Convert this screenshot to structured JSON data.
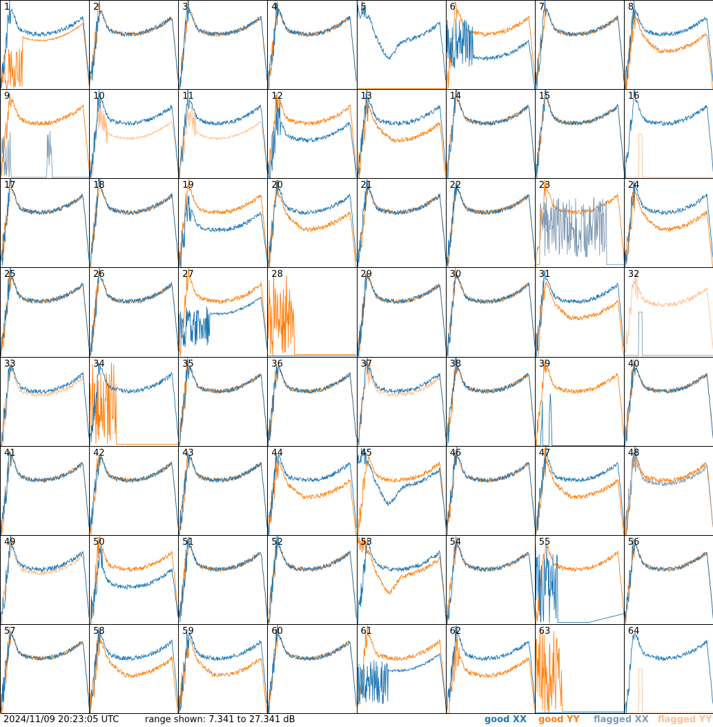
{
  "chart_data": {
    "type": "line",
    "panels": [
      "1",
      "2",
      "3",
      "4",
      "5",
      "6",
      "7",
      "8",
      "9",
      "10",
      "11",
      "12",
      "13",
      "14",
      "15",
      "16",
      "17",
      "18",
      "19",
      "20",
      "21",
      "22",
      "23",
      "24",
      "25",
      "26",
      "27",
      "28",
      "29",
      "30",
      "31",
      "32",
      "33",
      "34",
      "35",
      "36",
      "37",
      "38",
      "39",
      "40",
      "41",
      "42",
      "43",
      "44",
      "45",
      "46",
      "47",
      "48",
      "49",
      "50",
      "51",
      "52",
      "53",
      "54",
      "55",
      "56",
      "57",
      "58",
      "59",
      "60",
      "61",
      "62",
      "63",
      "64"
    ],
    "ylim_db": [
      7.341,
      27.341
    ],
    "grid": false,
    "series": [
      {
        "key": "good_xx",
        "color": "#1f77b4"
      },
      {
        "key": "good_yy",
        "color": "#ff7f0e"
      },
      {
        "key": "flagged_xx",
        "color": "#7f9bb5"
      },
      {
        "key": "flagged_yy",
        "color": "#ffbf8f"
      }
    ],
    "panel_styles": {
      "1": [
        "std",
        "low_dip"
      ],
      "2": [
        "std",
        "std"
      ],
      "3": [
        "std",
        "std"
      ],
      "4": [
        "std",
        "std"
      ],
      "5": [
        "drop5",
        "off"
      ],
      "6": [
        "drop6",
        "std"
      ],
      "7": [
        "std",
        "std"
      ],
      "8": [
        "std",
        "low"
      ],
      "9": [
        "fspike",
        "std"
      ],
      "10": [
        "std",
        "fstd_low"
      ],
      "11": [
        "std",
        "fstd_low"
      ],
      "12": [
        "drop12",
        "std"
      ],
      "13": [
        "std",
        "low"
      ],
      "14": [
        "std",
        "std"
      ],
      "15": [
        "std",
        "std"
      ],
      "16": [
        "std",
        "fspike1"
      ],
      "17": [
        "std",
        "std"
      ],
      "18": [
        "std",
        "std"
      ],
      "19": [
        "low19",
        "std"
      ],
      "20": [
        "std",
        "low"
      ],
      "21": [
        "std",
        "std"
      ],
      "22": [
        "std",
        "std"
      ],
      "23": [
        "fnoise",
        "std"
      ],
      "24": [
        "std",
        "low"
      ],
      "25": [
        "std",
        "std"
      ],
      "26": [
        "std",
        "std"
      ],
      "27": [
        "drop27",
        "std"
      ],
      "28": [
        "off",
        "burst"
      ],
      "29": [
        "std",
        "std"
      ],
      "30": [
        "std",
        "std"
      ],
      "31": [
        "std",
        "low"
      ],
      "32": [
        "fspike1",
        "fstd"
      ],
      "33": [
        "std",
        "fstd"
      ],
      "34": [
        "std",
        "burst"
      ],
      "35": [
        "std",
        "std"
      ],
      "36": [
        "std",
        "std"
      ],
      "37": [
        "std",
        "fstd"
      ],
      "38": [
        "std",
        "std"
      ],
      "39": [
        "spikes",
        "std"
      ],
      "40": [
        "std",
        "std"
      ],
      "41": [
        "std",
        "std"
      ],
      "42": [
        "std",
        "std"
      ],
      "43": [
        "std",
        "std"
      ],
      "44": [
        "std",
        "low"
      ],
      "45": [
        "drop5",
        "std"
      ],
      "46": [
        "std",
        "std"
      ],
      "47": [
        "std",
        "low"
      ],
      "48": [
        "fstd",
        "std"
      ],
      "49": [
        "std",
        "fstd"
      ],
      "50": [
        "low19",
        "std"
      ],
      "51": [
        "std",
        "std"
      ],
      "52": [
        "std",
        "std"
      ],
      "53": [
        "std",
        "drop5"
      ],
      "54": [
        "std",
        "std"
      ],
      "55": [
        "burstx",
        "std"
      ],
      "56": [
        "std",
        "std"
      ],
      "57": [
        "std",
        "std"
      ],
      "58": [
        "std",
        "low"
      ],
      "59": [
        "std",
        "low"
      ],
      "60": [
        "std",
        "std"
      ],
      "61": [
        "drop27",
        "std"
      ],
      "62": [
        "std",
        "drop12"
      ],
      "63": [
        "off",
        "burst"
      ],
      "64": [
        "std",
        "fspike1"
      ]
    }
  },
  "footer": {
    "timestamp": "2024/11/09 20:23:05 UTC",
    "range": "range shown: 7.341 to 27.341 dB"
  },
  "legend": {
    "good_xx": "good XX",
    "good_yy": "good YY",
    "flagged_xx": "flagged XX",
    "flagged_yy": "flagged YY"
  }
}
